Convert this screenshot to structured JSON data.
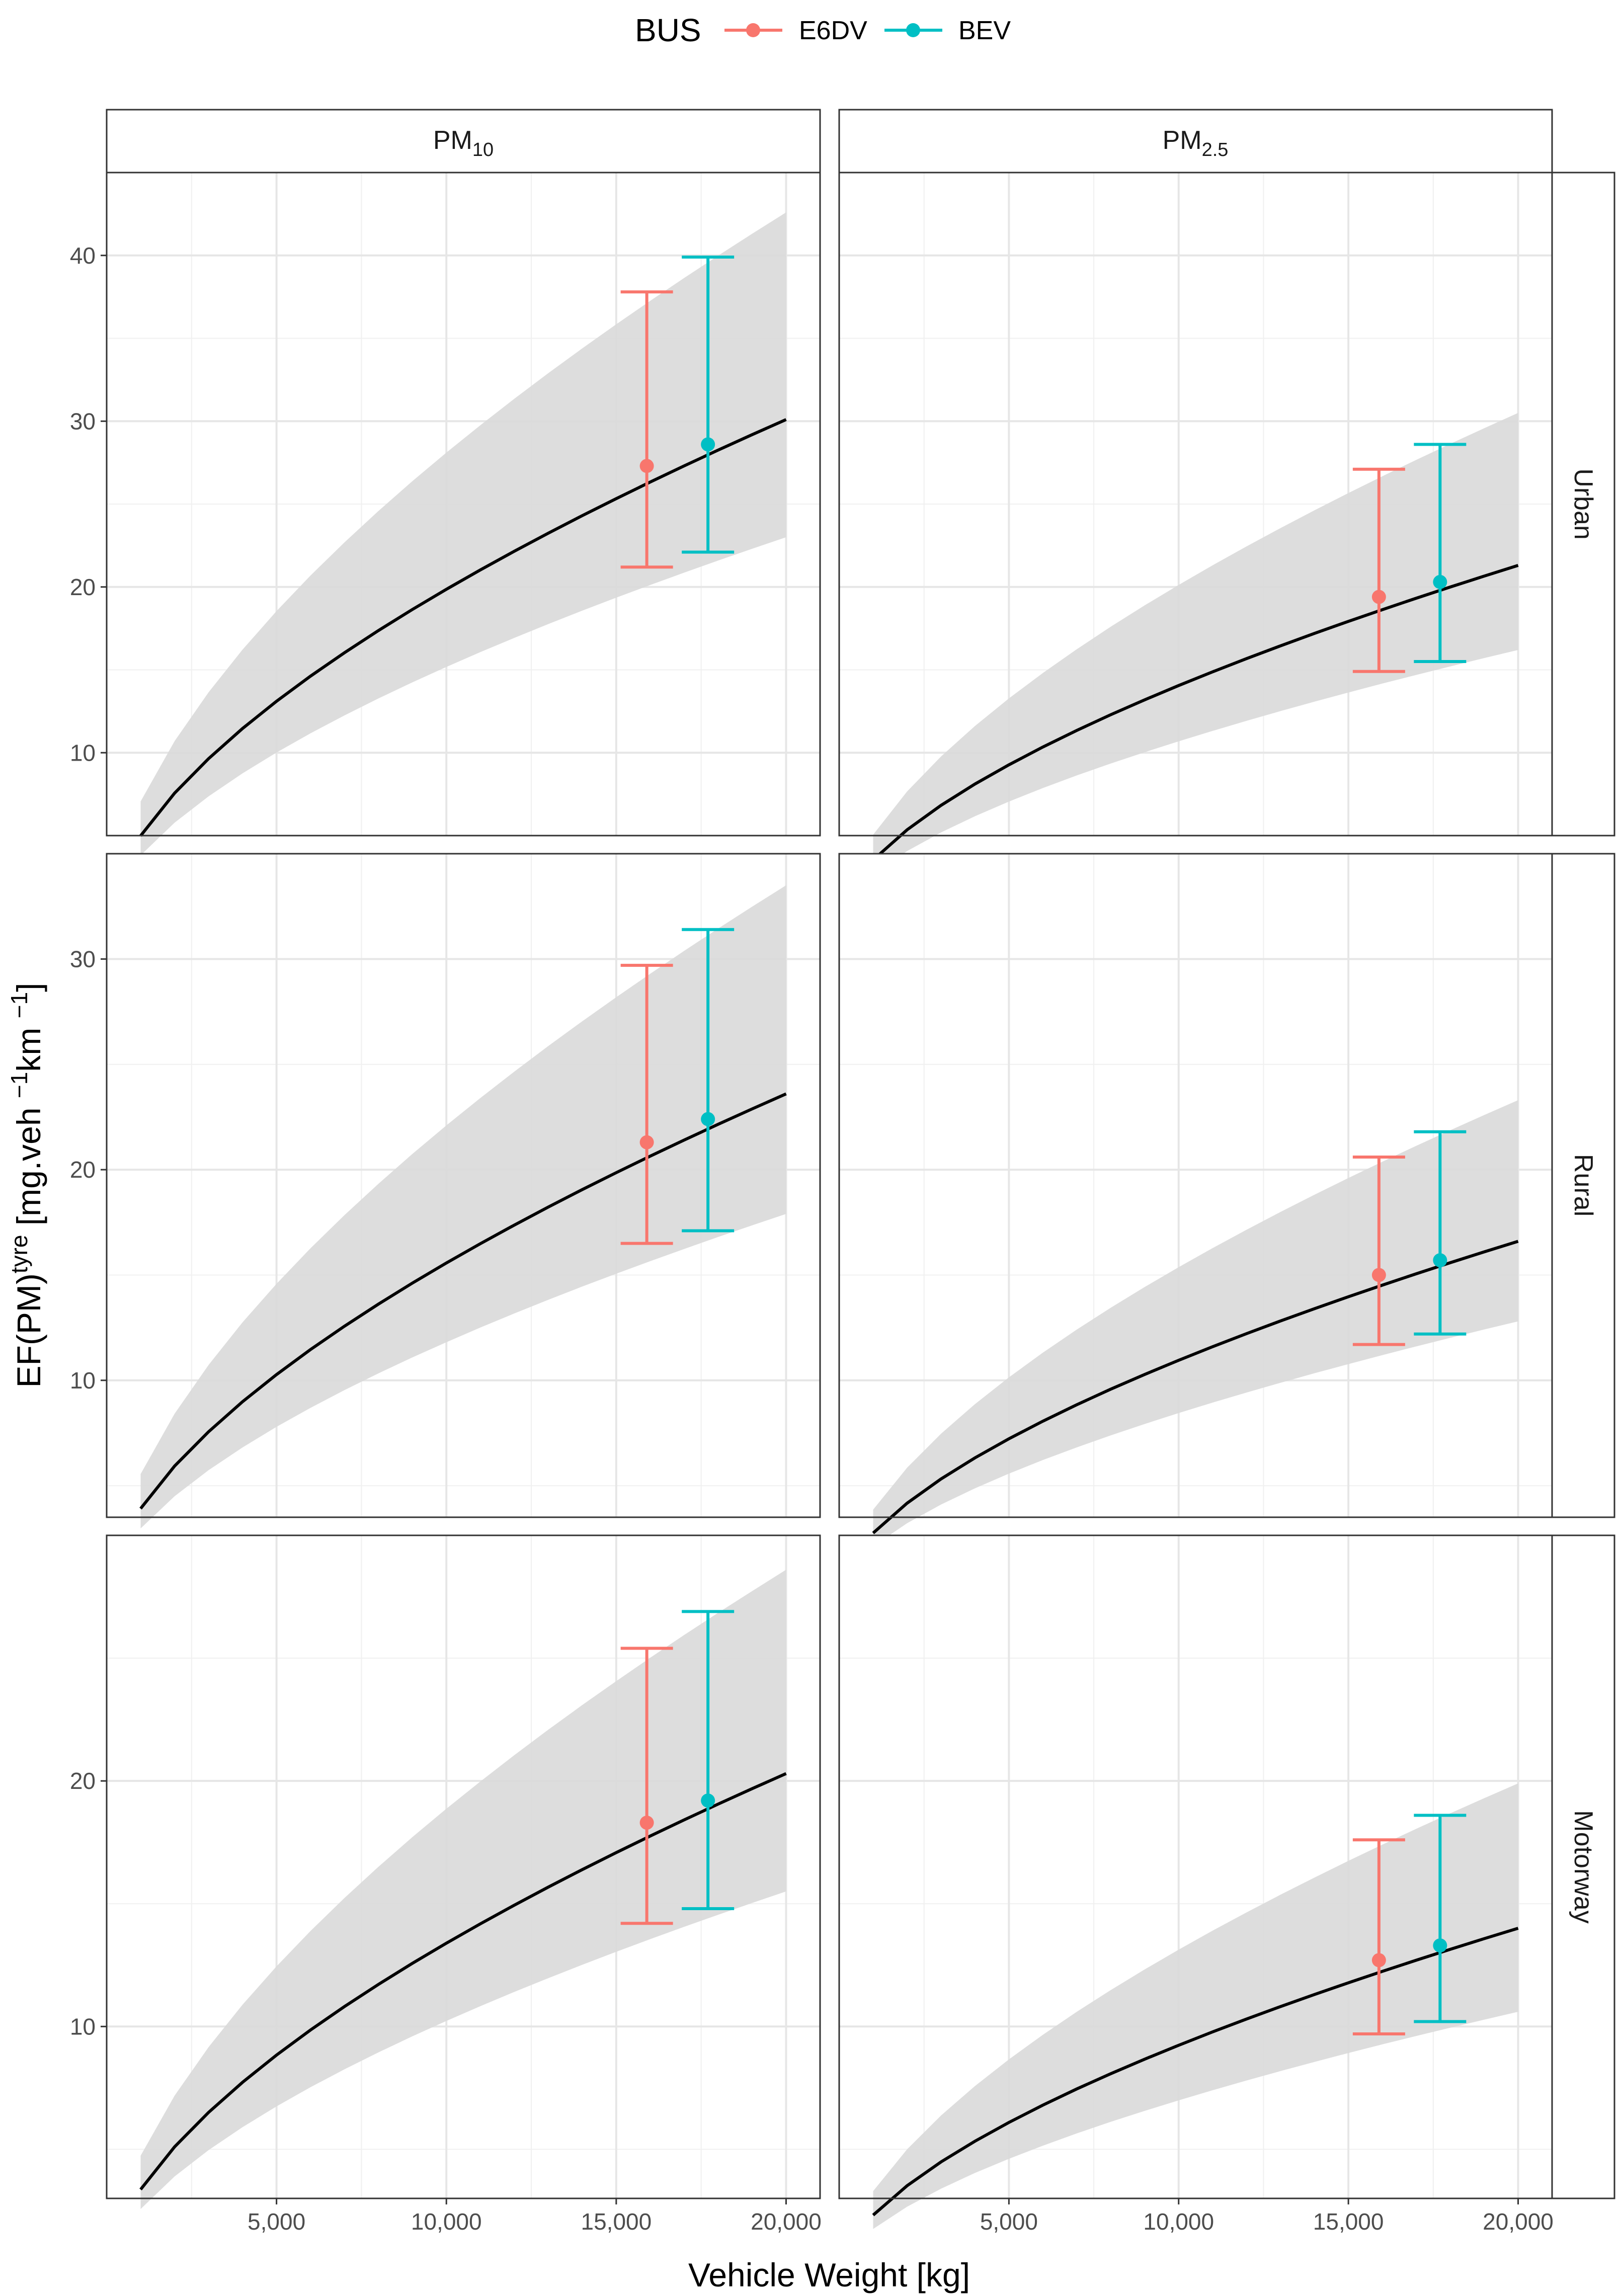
{
  "chart_data": {
    "type": "line",
    "xlabel": "Vehicle Weight [kg]",
    "ylabel": "EF(PM)tyre [mg.veh −1km −1]",
    "ylabel_parts": {
      "base": "EF(PM)",
      "sup1": "tyre",
      "mid": " [mg.veh ",
      "sup2": "−1",
      "mid2": "km ",
      "sup3": "−1",
      "end": "]"
    },
    "xlim": [
      0,
      21000
    ],
    "x_ticks": [
      5000,
      10000,
      15000,
      20000
    ],
    "x_tick_labels": [
      "5,000",
      "10,000",
      "15,000",
      "20,000"
    ],
    "legend": {
      "title": "BUS",
      "entries": [
        {
          "name": "E6DV",
          "color": "#F8766D"
        },
        {
          "name": "BEV",
          "color": "#00BFC4"
        }
      ]
    },
    "columns": [
      {
        "key": "pm10",
        "label_base": "PM",
        "label_sub": "10"
      },
      {
        "key": "pm25",
        "label_base": "PM",
        "label_sub": "2.5"
      }
    ],
    "rows": [
      {
        "label": "Urban",
        "ylim": [
          5,
          45
        ],
        "y_ticks": [
          10,
          20,
          30,
          40
        ]
      },
      {
        "label": "Rural",
        "ylim": [
          3.5,
          35
        ],
        "y_ticks": [
          10,
          20,
          30
        ]
      },
      {
        "label": "Motorway",
        "ylim": [
          3,
          30
        ],
        "y_ticks": [
          10,
          20
        ]
      }
    ],
    "curve_x": [
      1000,
      2000,
      3000,
      4000,
      5000,
      6000,
      7000,
      8000,
      9000,
      10000,
      11000,
      12000,
      13000,
      14000,
      15000,
      16000,
      17000,
      18000,
      19000,
      20000
    ],
    "panels": [
      {
        "row": "Urban",
        "col": "PM10",
        "curve_end": 30.1,
        "band_low_end": 23.0,
        "band_high_end": 42.6,
        "points": [
          {
            "series": "E6DV",
            "x": 15900,
            "y": 27.3,
            "ymin": 21.2,
            "ymax": 37.8
          },
          {
            "series": "BEV",
            "x": 17700,
            "y": 28.6,
            "ymin": 22.1,
            "ymax": 39.9
          }
        ]
      },
      {
        "row": "Urban",
        "col": "PM2.5",
        "curve_end": 21.3,
        "band_low_end": 16.2,
        "band_high_end": 30.5,
        "points": [
          {
            "series": "E6DV",
            "x": 15900,
            "y": 19.4,
            "ymin": 14.9,
            "ymax": 27.1
          },
          {
            "series": "BEV",
            "x": 17700,
            "y": 20.3,
            "ymin": 15.5,
            "ymax": 28.6
          }
        ]
      },
      {
        "row": "Rural",
        "col": "PM10",
        "curve_end": 23.6,
        "band_low_end": 17.9,
        "band_high_end": 33.5,
        "points": [
          {
            "series": "E6DV",
            "x": 15900,
            "y": 21.3,
            "ymin": 16.5,
            "ymax": 29.7
          },
          {
            "series": "BEV",
            "x": 17700,
            "y": 22.4,
            "ymin": 17.1,
            "ymax": 31.4
          }
        ]
      },
      {
        "row": "Rural",
        "col": "PM2.5",
        "curve_end": 16.6,
        "band_low_end": 12.8,
        "band_high_end": 23.3,
        "points": [
          {
            "series": "E6DV",
            "x": 15900,
            "y": 15.0,
            "ymin": 11.7,
            "ymax": 20.6
          },
          {
            "series": "BEV",
            "x": 17700,
            "y": 15.7,
            "ymin": 12.2,
            "ymax": 21.8
          }
        ]
      },
      {
        "row": "Motorway",
        "col": "PM10",
        "curve_end": 20.3,
        "band_low_end": 15.5,
        "band_high_end": 28.6,
        "points": [
          {
            "series": "E6DV",
            "x": 15900,
            "y": 18.3,
            "ymin": 14.2,
            "ymax": 25.4
          },
          {
            "series": "BEV",
            "x": 17700,
            "y": 19.2,
            "ymin": 14.8,
            "ymax": 26.9
          }
        ]
      },
      {
        "row": "Motorway",
        "col": "PM2.5",
        "curve_end": 14.0,
        "band_low_end": 10.6,
        "band_high_end": 19.9,
        "points": [
          {
            "series": "E6DV",
            "x": 15900,
            "y": 12.7,
            "ymin": 9.7,
            "ymax": 17.6
          },
          {
            "series": "BEV",
            "x": 17700,
            "y": 13.3,
            "ymin": 10.2,
            "ymax": 18.6
          }
        ]
      }
    ]
  }
}
